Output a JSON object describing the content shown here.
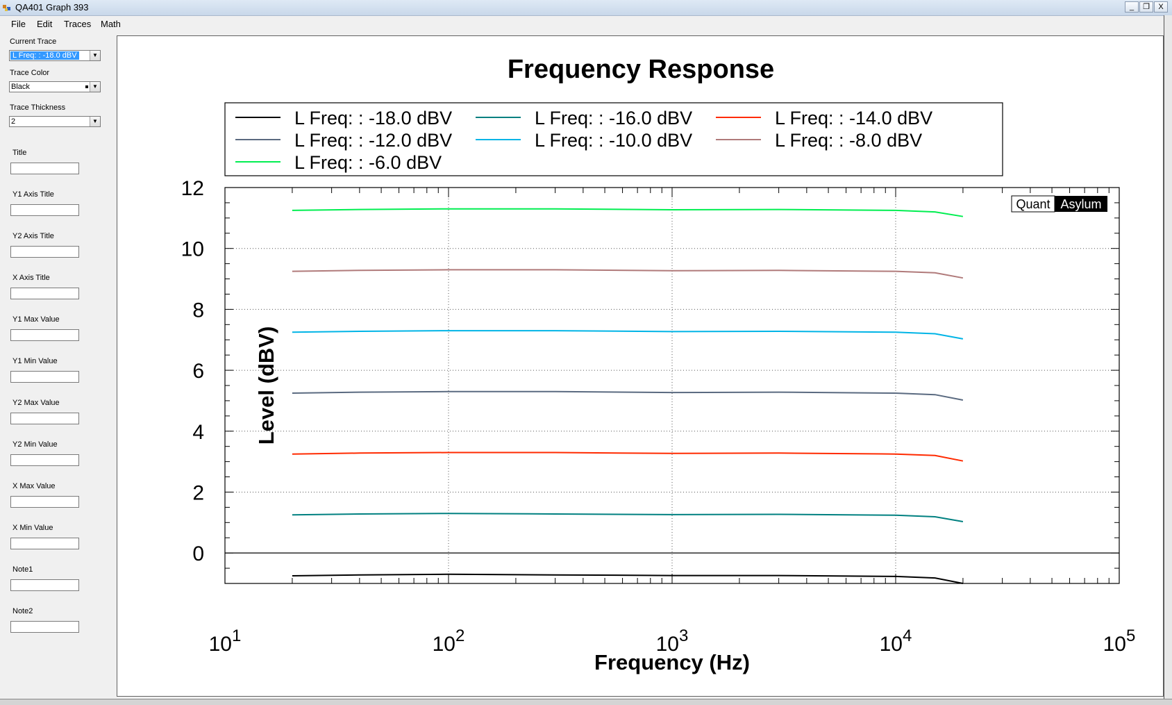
{
  "window": {
    "title": "QA401 Graph 393",
    "minimize_glyph": "_",
    "restore_glyph": "❐",
    "close_glyph": "X"
  },
  "menu": [
    "File",
    "Edit",
    "Traces",
    "Math"
  ],
  "side_panel": {
    "current_trace_label": "Current Trace",
    "current_trace_value": "L Freq: : -18.0 dBV",
    "trace_color_label": "Trace Color",
    "trace_color_value": "Black",
    "trace_thickness_label": "Trace Thickness",
    "trace_thickness_value": "2",
    "fields": [
      {
        "label": "Title",
        "value": ""
      },
      {
        "label": "Y1 Axis Title",
        "value": ""
      },
      {
        "label": "Y2 Axis Title",
        "value": ""
      },
      {
        "label": "X Axis Title",
        "value": ""
      },
      {
        "label": "Y1 Max Value",
        "value": ""
      },
      {
        "label": "Y1 Min Value",
        "value": ""
      },
      {
        "label": "Y2 Max Value",
        "value": ""
      },
      {
        "label": "Y2 Min Value",
        "value": ""
      },
      {
        "label": "X Max Value",
        "value": ""
      },
      {
        "label": "X Min Value",
        "value": ""
      },
      {
        "label": "Note1",
        "value": ""
      },
      {
        "label": "Note2",
        "value": ""
      }
    ]
  },
  "chart_data": {
    "type": "line",
    "title": "Frequency Response",
    "xlabel": "Frequency (Hz)",
    "ylabel": "Level (dBV)",
    "x_scale": "log",
    "xlim": [
      10,
      100000
    ],
    "ylim": [
      -1,
      12
    ],
    "y_ticks": [
      0,
      2,
      4,
      6,
      8,
      10,
      12
    ],
    "x_tick_exponents": [
      "1",
      "2",
      "3",
      "4",
      "5"
    ],
    "x_tick_base": "10",
    "grid": true,
    "legend_placement": "top",
    "watermark": {
      "part1": "Quant",
      "part2": "Asylum"
    },
    "x": [
      20,
      40,
      100,
      300,
      1000,
      3000,
      10000,
      15000,
      20000
    ],
    "series": [
      {
        "name": "L Freq: : -18.0 dBV",
        "color": "#000000",
        "values": [
          -0.75,
          -0.72,
          -0.7,
          -0.72,
          -0.74,
          -0.74,
          -0.77,
          -0.82,
          -1.0
        ]
      },
      {
        "name": "L Freq: : -16.0 dBV",
        "color": "#008080",
        "values": [
          1.25,
          1.28,
          1.3,
          1.28,
          1.26,
          1.27,
          1.24,
          1.19,
          1.03
        ]
      },
      {
        "name": "L Freq: : -14.0 dBV",
        "color": "#ff2a00",
        "values": [
          3.25,
          3.28,
          3.3,
          3.3,
          3.27,
          3.28,
          3.25,
          3.2,
          3.02
        ]
      },
      {
        "name": "L Freq: : -12.0 dBV",
        "color": "#5a6a80",
        "values": [
          5.25,
          5.28,
          5.3,
          5.3,
          5.27,
          5.28,
          5.25,
          5.2,
          5.02
        ]
      },
      {
        "name": "L Freq: : -10.0 dBV",
        "color": "#00b4e6",
        "values": [
          7.25,
          7.28,
          7.3,
          7.3,
          7.27,
          7.28,
          7.25,
          7.2,
          7.03
        ]
      },
      {
        "name": "L Freq: : -8.0 dBV",
        "color": "#b07a7a",
        "values": [
          9.25,
          9.28,
          9.3,
          9.3,
          9.27,
          9.28,
          9.25,
          9.2,
          9.03
        ]
      },
      {
        "name": "L Freq: : -6.0 dBV",
        "color": "#00ee50",
        "values": [
          11.25,
          11.28,
          11.3,
          11.3,
          11.27,
          11.28,
          11.25,
          11.2,
          11.05
        ]
      }
    ]
  }
}
